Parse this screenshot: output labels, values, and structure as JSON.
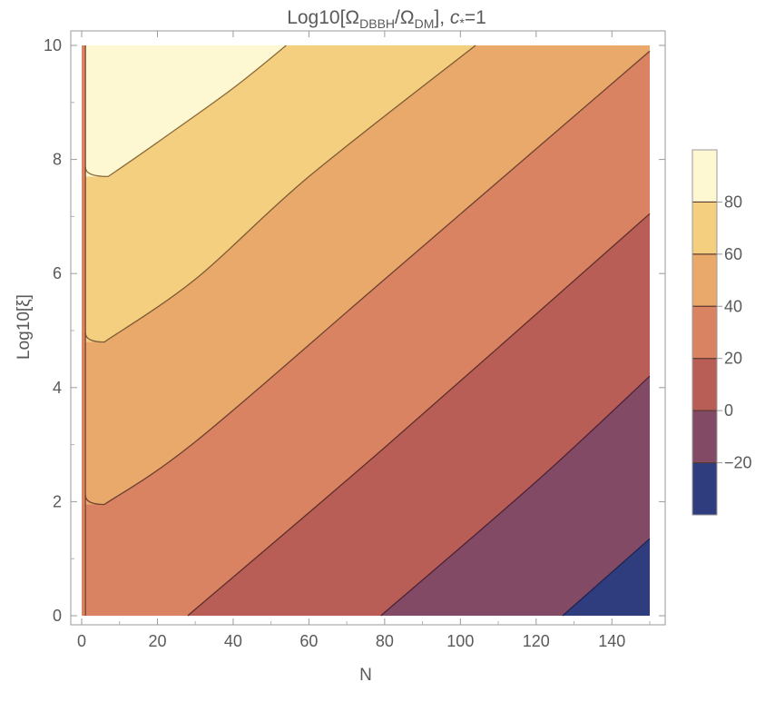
{
  "chart_data": {
    "type": "contour",
    "title": {
      "prefix": "Log10[Ω",
      "sub1": "DBBH",
      "mid": "/Ω",
      "sub2": "DM",
      "suffix": "], ",
      "var": "c",
      "var_sup": "*",
      "tail": "=1"
    },
    "xlabel": "N",
    "ylabel": "Log10[ξ]",
    "xlim": [
      0,
      150
    ],
    "ylim": [
      0,
      10
    ],
    "xticks": [
      "0",
      "20",
      "40",
      "60",
      "80",
      "100",
      "120",
      "140"
    ],
    "yticks": [
      "0",
      "2",
      "4",
      "6",
      "8",
      "10"
    ],
    "contour_levels": [
      -20,
      0,
      20,
      40,
      60,
      80
    ],
    "legend_ticks": [
      "−20",
      "0",
      "20",
      "40",
      "60",
      "80"
    ],
    "legend_range": [
      -40,
      100
    ],
    "legend_placement": "right",
    "band_colors": {
      "below_-20": "#2f3c7e",
      "-20_to_0": "#834a66",
      "0_to_20": "#b95e56",
      "20_to_40": "#d98362",
      "40_to_60": "#e9a96a",
      "60_to_80": "#f4cf80",
      "above_80": "#fdf8d2"
    },
    "contours": [
      {
        "level": 80,
        "points": [
          [
            7,
            7.7
          ],
          [
            20,
            8.3
          ],
          [
            40,
            9.25
          ],
          [
            54,
            10
          ]
        ]
      },
      {
        "level": 60,
        "points": [
          [
            6,
            4.8
          ],
          [
            30,
            5.9
          ],
          [
            60,
            7.7
          ],
          [
            104,
            10
          ]
        ]
      },
      {
        "level": 40,
        "points": [
          [
            6,
            1.95
          ],
          [
            30,
            3.05
          ],
          [
            80,
            5.9
          ],
          [
            150,
            9.9
          ]
        ]
      },
      {
        "level": 20,
        "points": [
          [
            28,
            0
          ],
          [
            80,
            2.95
          ],
          [
            150,
            7.05
          ]
        ]
      },
      {
        "level": 0,
        "points": [
          [
            79,
            0
          ],
          [
            120,
            2.35
          ],
          [
            150,
            4.2
          ]
        ]
      },
      {
        "level": -20,
        "points": [
          [
            127,
            0
          ],
          [
            150,
            1.35
          ]
        ]
      }
    ]
  }
}
